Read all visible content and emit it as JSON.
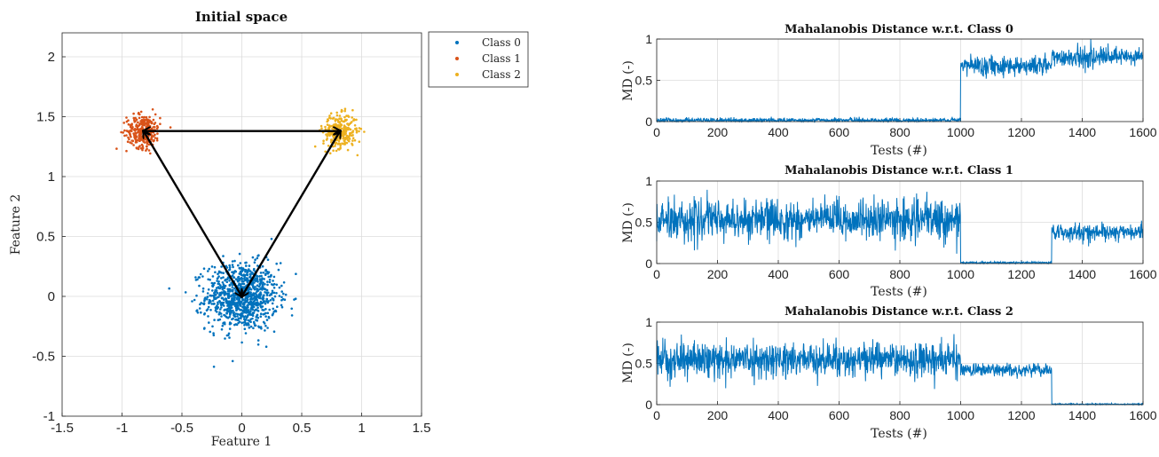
{
  "chart_data": [
    {
      "type": "scatter",
      "title": "Initial space",
      "xlabel": "Feature 1",
      "ylabel": "Feature 2",
      "xlim": [
        -1.5,
        1.5
      ],
      "ylim": [
        -1,
        2.2
      ],
      "xticks": [
        -1.5,
        -1,
        -0.5,
        0,
        0.5,
        1,
        1.5
      ],
      "xtick_labels": [
        "-1.5",
        "-1",
        "-0.5",
        "0",
        "0.5",
        "1",
        "1.5"
      ],
      "yticks": [
        -1,
        -0.5,
        0,
        0.5,
        1,
        1.5,
        2
      ],
      "ytick_labels": [
        "-1",
        "-0.5",
        "0",
        "0.5",
        "1",
        "1.5",
        "2"
      ],
      "grid": true,
      "legend_position": "outside-top-right",
      "series": [
        {
          "name": "Class 0",
          "color": "#0072BD",
          "center": [
            0,
            0
          ],
          "spread": [
            0.15,
            0.14
          ],
          "count": 1000
        },
        {
          "name": "Class 1",
          "color": "#D95319",
          "center": [
            -0.82,
            1.38
          ],
          "spread": [
            0.07,
            0.07
          ],
          "count": 300
        },
        {
          "name": "Class 2",
          "color": "#EDB120",
          "center": [
            0.82,
            1.38
          ],
          "spread": [
            0.07,
            0.07
          ],
          "count": 300
        }
      ],
      "arrows": [
        {
          "from": [
            -0.82,
            1.38
          ],
          "to": [
            0.82,
            1.38
          ],
          "double": true
        },
        {
          "from": [
            -0.82,
            1.38
          ],
          "to": [
            0,
            0
          ],
          "double": true
        },
        {
          "from": [
            0.82,
            1.38
          ],
          "to": [
            0,
            0
          ],
          "double": true
        }
      ]
    },
    {
      "type": "line",
      "title": "Mahalanobis Distance w.r.t. Class 0",
      "xlabel": "Tests (#)",
      "ylabel": "MD (-)",
      "xlim": [
        0,
        1600
      ],
      "ylim": [
        0,
        1
      ],
      "xticks": [
        0,
        200,
        400,
        600,
        800,
        1000,
        1200,
        1400,
        1600
      ],
      "xtick_labels": [
        "0",
        "200",
        "400",
        "600",
        "800",
        "1000",
        "1200",
        "1400",
        "1600"
      ],
      "yticks": [
        0,
        0.5,
        1
      ],
      "ytick_labels": [
        "0",
        "0.5",
        "1"
      ],
      "grid": true,
      "color": "#0072BD",
      "segments": [
        {
          "x_range": [
            0,
            1000
          ],
          "mean": 0.015,
          "noise": 0.015
        },
        {
          "x_range": [
            1000,
            1300
          ],
          "mean": 0.68,
          "noise": 0.06
        },
        {
          "x_range": [
            1300,
            1600
          ],
          "mean": 0.78,
          "noise": 0.06
        }
      ]
    },
    {
      "type": "line",
      "title": "Mahalanobis Distance w.r.t. Class 1",
      "xlabel": "Tests (#)",
      "ylabel": "MD (-)",
      "xlim": [
        0,
        1600
      ],
      "ylim": [
        0,
        1
      ],
      "xticks": [
        0,
        200,
        400,
        600,
        800,
        1000,
        1200,
        1400,
        1600
      ],
      "xtick_labels": [
        "0",
        "200",
        "400",
        "600",
        "800",
        "1000",
        "1200",
        "1400",
        "1600"
      ],
      "yticks": [
        0,
        0.5,
        1
      ],
      "ytick_labels": [
        "0",
        "0.5",
        "1"
      ],
      "grid": true,
      "color": "#0072BD",
      "segments": [
        {
          "x_range": [
            0,
            1000
          ],
          "mean": 0.53,
          "noise": 0.12
        },
        {
          "x_range": [
            1000,
            1300
          ],
          "mean": 0.01,
          "noise": 0.006
        },
        {
          "x_range": [
            1300,
            1600
          ],
          "mean": 0.38,
          "noise": 0.05
        }
      ]
    },
    {
      "type": "line",
      "title": "Mahalanobis Distance w.r.t. Class 2",
      "xlabel": "Tests (#)",
      "ylabel": "MD (-)",
      "xlim": [
        0,
        1600
      ],
      "ylim": [
        0,
        1
      ],
      "xticks": [
        0,
        200,
        400,
        600,
        800,
        1000,
        1200,
        1400,
        1600
      ],
      "xtick_labels": [
        "0",
        "200",
        "400",
        "600",
        "800",
        "1000",
        "1200",
        "1400",
        "1600"
      ],
      "yticks": [
        0,
        0.5,
        1
      ],
      "ytick_labels": [
        "0",
        "0.5",
        "1"
      ],
      "grid": true,
      "color": "#0072BD",
      "segments": [
        {
          "x_range": [
            0,
            1000
          ],
          "mean": 0.55,
          "noise": 0.1
        },
        {
          "x_range": [
            1000,
            1300
          ],
          "mean": 0.42,
          "noise": 0.04
        },
        {
          "x_range": [
            1300,
            1600
          ],
          "mean": 0.005,
          "noise": 0.004
        }
      ]
    }
  ]
}
